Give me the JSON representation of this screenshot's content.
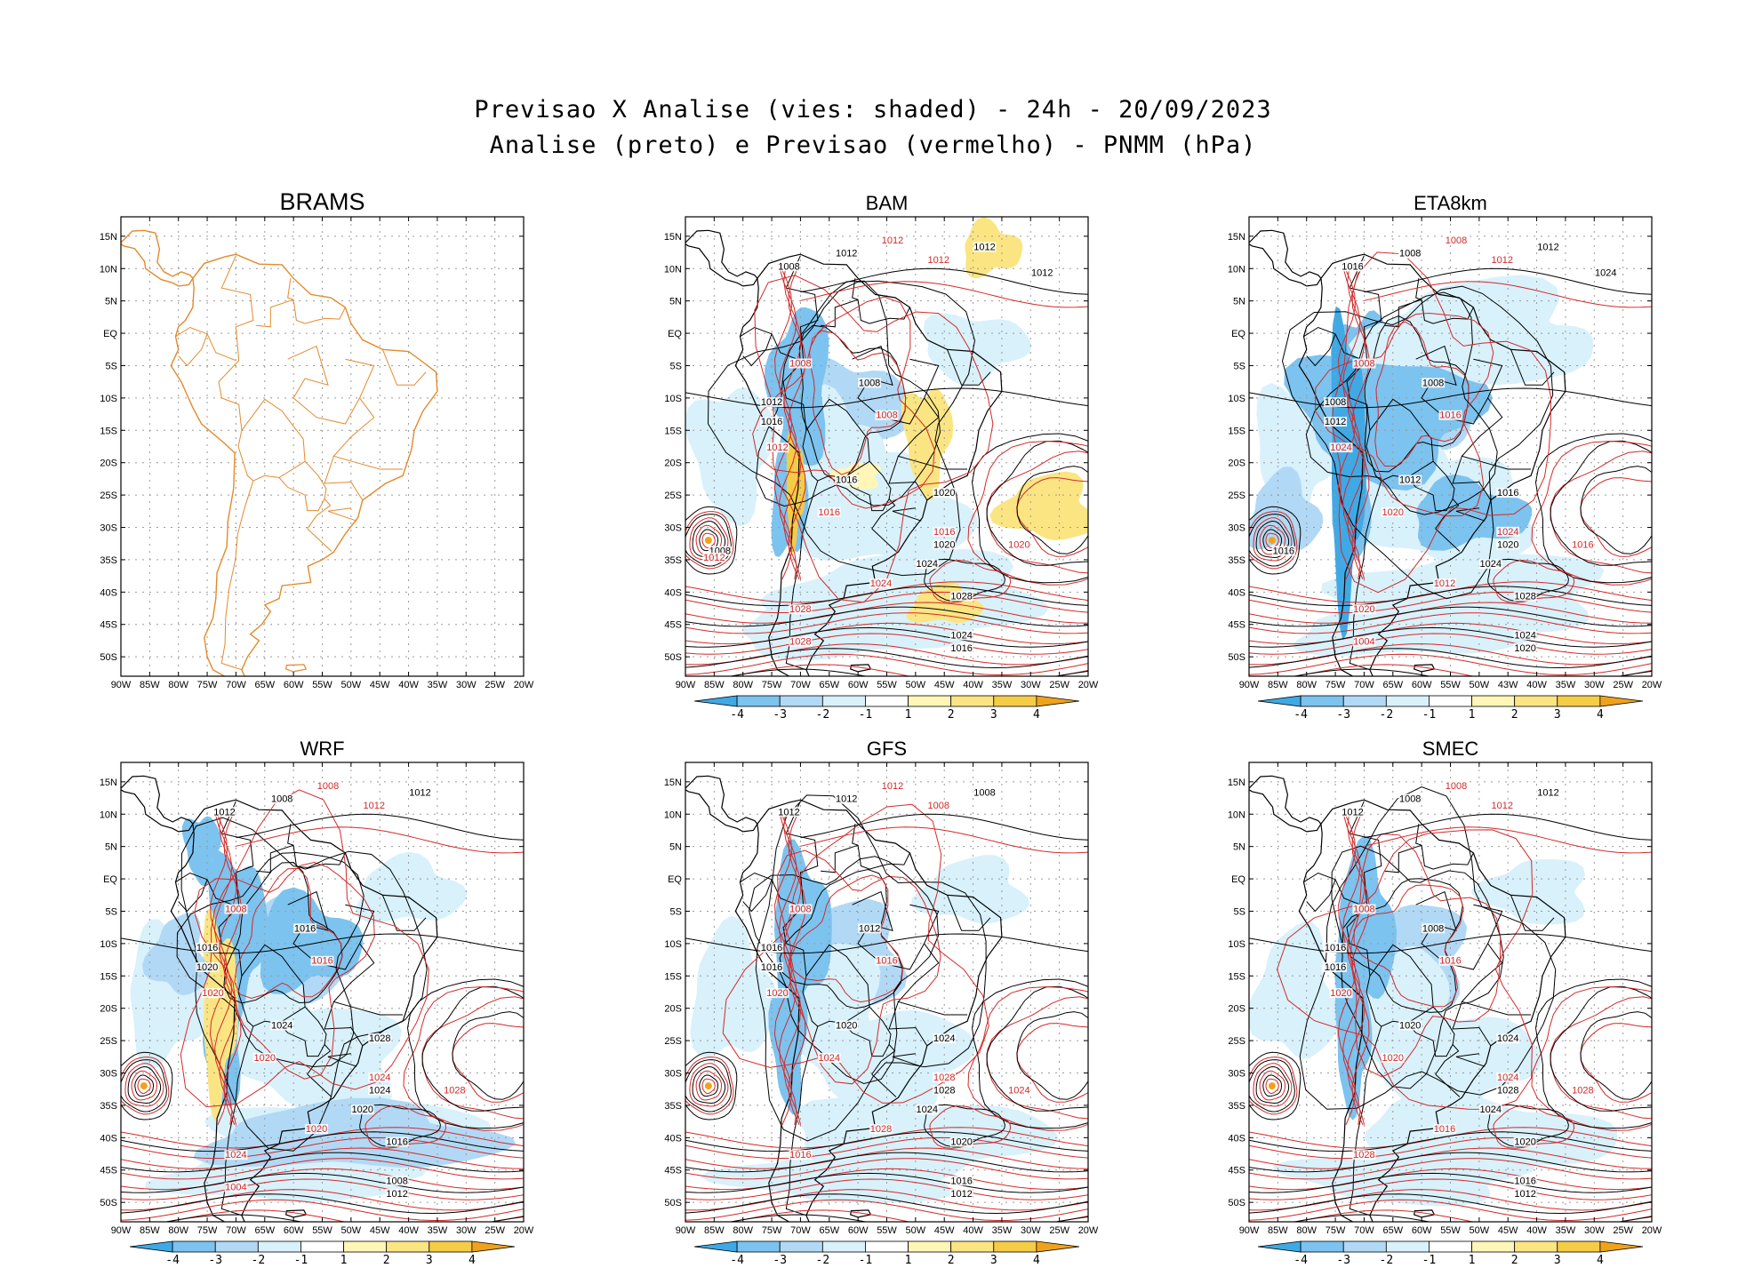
{
  "title": {
    "line1": "Previsao X Analise (vies: shaded) - 24h - 20/09/2023",
    "line2": "Analise (preto) e Previsao (vermelho) - PNMM (hPa)"
  },
  "x_ticks": [
    "90W",
    "85W",
    "80W",
    "75W",
    "70W",
    "65W",
    "60W",
    "55W",
    "50W",
    "45W",
    "40W",
    "35W",
    "30W",
    "25W",
    "20W"
  ],
  "y_ticks": [
    "15N",
    "10N",
    "5N",
    "EQ",
    "5S",
    "10S",
    "15S",
    "20S",
    "25S",
    "30S",
    "35S",
    "40S",
    "45S",
    "50S"
  ],
  "eta_x_ticks": [
    "90W",
    "85W",
    "80W",
    "75W",
    "70W",
    "65W",
    "60W",
    "55W",
    "50W",
    "43W",
    "40W",
    "35W",
    "30W",
    "25W",
    "20W"
  ],
  "colorbar": {
    "labels": [
      "-4",
      "-3",
      "-2",
      "-1",
      "1",
      "2",
      "3",
      "4"
    ],
    "colors": [
      "#3fa9e6",
      "#7cc3ef",
      "#b1d9f5",
      "#d8f1fb",
      "#ffffff",
      "#fff6b8",
      "#fbe583",
      "#f5cc45",
      "#f0a31a"
    ]
  },
  "colors": {
    "analysis": "#000000",
    "forecast": "#d22a2a",
    "brams_coast": "#e38a2c"
  },
  "panels": [
    {
      "name": "BRAMS",
      "labels_black": [],
      "labels_red": []
    },
    {
      "name": "BAM",
      "labels_black": [
        "1012",
        "1008",
        "1012",
        "1008",
        "1012",
        "1016",
        "1016",
        "1020",
        "1020",
        "1024",
        "1028",
        "1024",
        "1016",
        "1008",
        "1012"
      ],
      "labels_red": [
        "1012",
        "1012",
        "1008",
        "1008",
        "1012",
        "1016",
        "1016",
        "1020",
        "1024",
        "1028",
        "1028",
        "1012"
      ]
    },
    {
      "name": "ETA8km",
      "labels_black": [
        "1012",
        "1008",
        "1012",
        "1008",
        "1008",
        "1012",
        "1012",
        "1016",
        "1020",
        "1024",
        "1028",
        "1024",
        "1020",
        "1016",
        "1024",
        "1008",
        "1016"
      ],
      "labels_red": [
        "1008",
        "1012",
        "1008",
        "1016",
        "1024",
        "1020",
        "1024",
        "1016",
        "1012",
        "1020",
        "1004"
      ]
    },
    {
      "name": "WRF",
      "labels_black": [
        "1008",
        "1012",
        "1012",
        "1016",
        "1016",
        "1020",
        "1024",
        "1028",
        "1024",
        "1020",
        "1016",
        "1008",
        "1012"
      ],
      "labels_red": [
        "1008",
        "1012",
        "1008",
        "1016",
        "1020",
        "1020",
        "1024",
        "1028",
        "1020",
        "1024",
        "1004"
      ]
    },
    {
      "name": "GFS",
      "labels_black": [
        "1012",
        "1012",
        "1008",
        "1012",
        "1016",
        "1016",
        "1020",
        "1024",
        "1028",
        "1024",
        "1020",
        "1016",
        "1012"
      ],
      "labels_red": [
        "1012",
        "1008",
        "1008",
        "1016",
        "1020",
        "1024",
        "1028",
        "1024",
        "1028",
        "1016"
      ]
    },
    {
      "name": "SMEC",
      "labels_black": [
        "1008",
        "1012",
        "1012",
        "1008",
        "1016",
        "1016",
        "1020",
        "1024",
        "1028",
        "1024",
        "1020",
        "1016",
        "1012"
      ],
      "labels_red": [
        "1008",
        "1012",
        "1008",
        "1016",
        "1020",
        "1020",
        "1024",
        "1028",
        "1016",
        "1028"
      ]
    }
  ]
}
